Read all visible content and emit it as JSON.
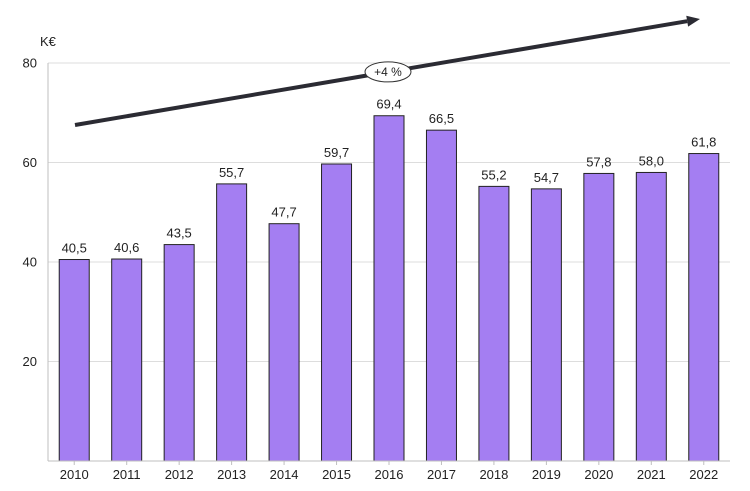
{
  "chart_data": {
    "type": "bar",
    "title": "",
    "ylabel": "K€",
    "xlabel": "",
    "categories": [
      "2010",
      "2011",
      "2012",
      "2013",
      "2014",
      "2015",
      "2016",
      "2017",
      "2018",
      "2019",
      "2020",
      "2021",
      "2022"
    ],
    "values": [
      40.5,
      40.6,
      43.5,
      55.7,
      47.7,
      59.7,
      69.4,
      66.5,
      55.2,
      54.7,
      57.8,
      58.0,
      61.8
    ],
    "value_labels": [
      "40,5",
      "40,6",
      "43,5",
      "55,7",
      "47,7",
      "59,7",
      "69,4",
      "66,5",
      "55,2",
      "54,7",
      "57,8",
      "58,0",
      "61,8"
    ],
    "ylim": [
      0,
      80
    ],
    "yticks": [
      20,
      40,
      60,
      80
    ],
    "grid": true,
    "bar_color": "#a47ef2",
    "bar_edge_color": "#222222",
    "trend": {
      "label": "+4 %",
      "color": "#2b2b33"
    }
  }
}
